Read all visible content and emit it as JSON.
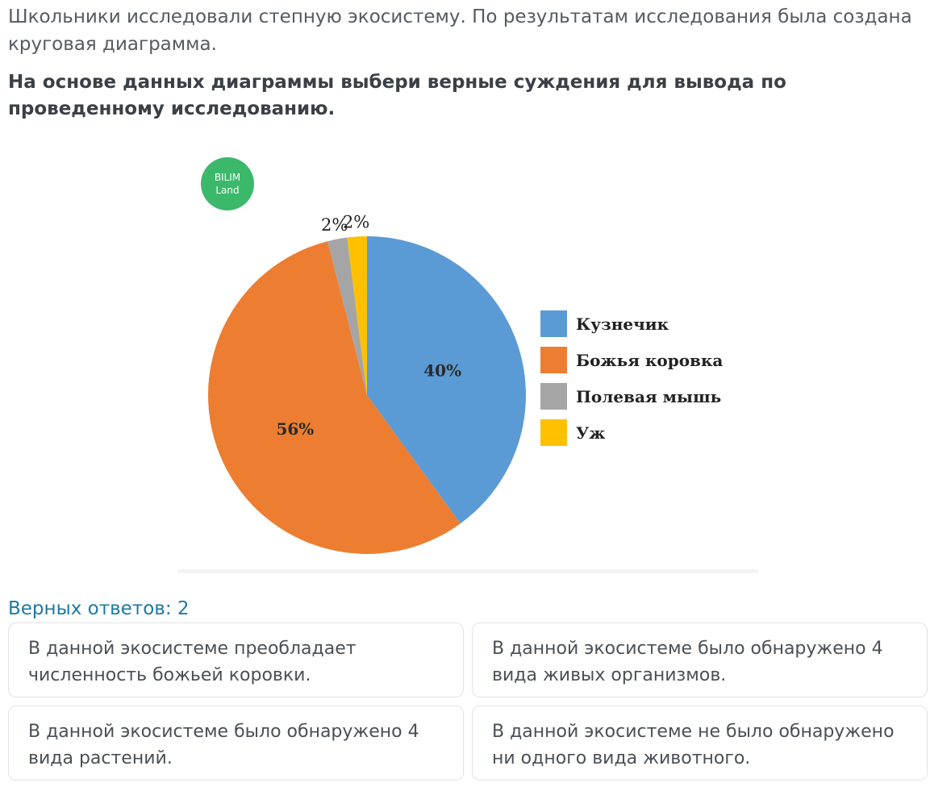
{
  "question": {
    "intro": "Школьники исследовали степную экосистему. По результатам исследования была создана круговая диаграмма.",
    "instruction": "На основе данных диаграммы выбери верные суждения для вывода по проведенному исследованию."
  },
  "logo": {
    "line1": "BILIM",
    "line2": "Land",
    "color": "#3cb86b"
  },
  "chart_data": {
    "type": "pie",
    "title": "",
    "slices": [
      {
        "label": "Кузнечик",
        "value": 40,
        "display": "40%",
        "color": "#5b9bd5"
      },
      {
        "label": "Божья коровка",
        "value": 56,
        "display": "56%",
        "color": "#ed7d31"
      },
      {
        "label": "Полевая мышь",
        "value": 2,
        "display": "2%",
        "color": "#a5a5a5"
      },
      {
        "label": "Уж",
        "value": 2,
        "display": "2%",
        "color": "#ffc000"
      }
    ],
    "legend_position": "right"
  },
  "answers": {
    "count_label": "Верных ответов: 2",
    "options": [
      {
        "text": "В данной экосистеме преобладает численность божьей коровки."
      },
      {
        "text": "В данной экосистеме было обнаружено 4 вида живых организмов."
      },
      {
        "text": "В данной экосистеме было обнаружено 4 вида растений."
      },
      {
        "text": "В данной экосистеме не было обнаружено ни одного вида животного."
      }
    ]
  }
}
